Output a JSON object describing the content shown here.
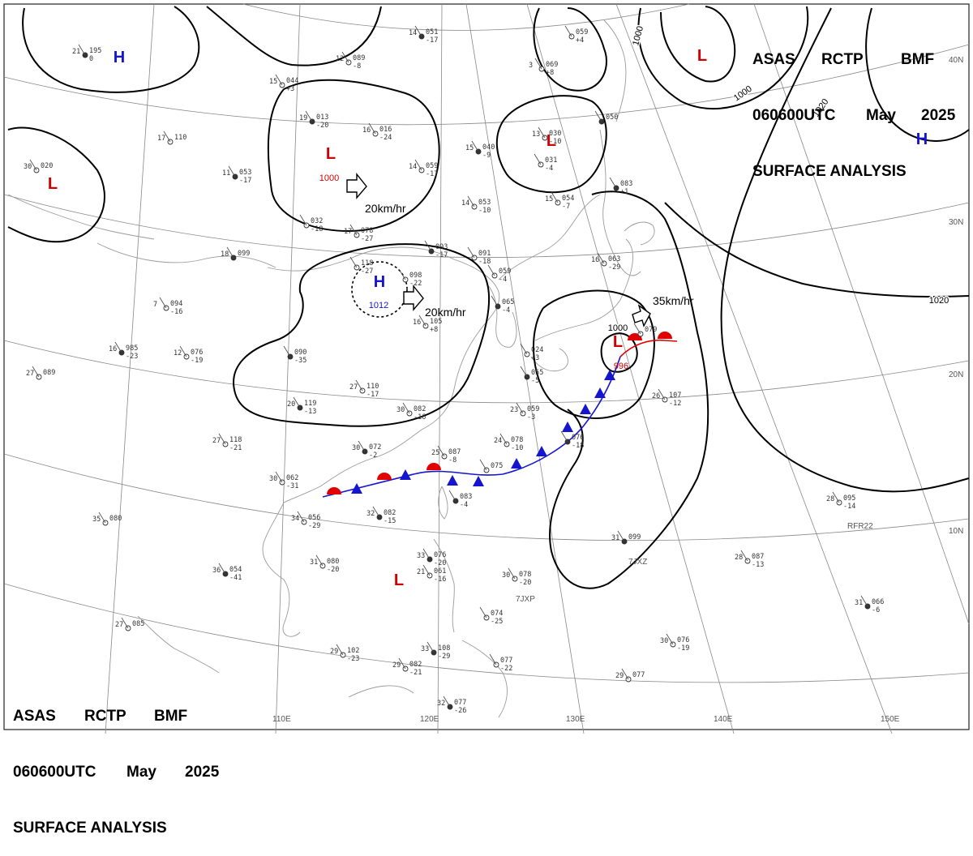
{
  "header": {
    "agency": "ASAS",
    "office": "RCTP",
    "issuer": "BMF",
    "time": "060600UTC",
    "month": "May",
    "year": "2025",
    "title": "SURFACE ANALYSIS"
  },
  "longitude_labels": [
    "110E",
    "120E",
    "130E",
    "140E",
    "150E"
  ],
  "latitude_labels": [
    "40N",
    "30N",
    "20N",
    "10N"
  ],
  "isobar_labels": [
    "1000",
    "1000",
    "1020",
    "1020",
    "1000"
  ],
  "pressure_centers": [
    {
      "type": "H",
      "value": "",
      "color": "#1515d0"
    },
    {
      "type": "L",
      "value": "",
      "color": "#d00000"
    },
    {
      "type": "L",
      "value": "1000",
      "color": "#d00000"
    },
    {
      "type": "L",
      "value": "",
      "color": "#d00000"
    },
    {
      "type": "L",
      "value": "",
      "color": "#d00000"
    },
    {
      "type": "H",
      "value": "",
      "color": "#1515d0"
    },
    {
      "type": "H",
      "value": "1012",
      "color": "#1515d0"
    },
    {
      "type": "L",
      "value": "996",
      "color": "#d00000"
    },
    {
      "type": "L",
      "value": "",
      "color": "#d00000"
    }
  ],
  "movement_labels": [
    "20km/hr",
    "20km/hr",
    "35km/hr"
  ],
  "stations": [
    {
      "t": "14",
      "p": "051",
      "d": "-17"
    },
    {
      "t": "12",
      "p": "089",
      "d": "-8"
    },
    {
      "t": "15",
      "p": "044",
      "d": "+3"
    },
    {
      "t": "19",
      "p": "013",
      "d": "-20"
    },
    {
      "t": "16",
      "p": "016",
      "d": "-24"
    },
    {
      "t": "14",
      "p": "059",
      "d": "-17"
    },
    {
      "t": "11",
      "p": "053",
      "d": "-17"
    },
    {
      "t": "",
      "p": "032",
      "d": "-18"
    },
    {
      "t": "17",
      "p": "078",
      "d": "-27"
    },
    {
      "t": "18",
      "p": "099",
      "d": ""
    },
    {
      "t": "",
      "p": "118",
      "d": "-27"
    },
    {
      "t": "",
      "p": "098",
      "d": "-22"
    },
    {
      "t": "",
      "p": "093",
      "d": "-17"
    },
    {
      "t": "",
      "p": "091",
      "d": "-18"
    },
    {
      "t": "7",
      "p": "094",
      "d": "-16"
    },
    {
      "t": "16",
      "p": "985",
      "d": "-23"
    },
    {
      "t": "12",
      "p": "076",
      "d": "-19"
    },
    {
      "t": "27",
      "p": "089",
      "d": ""
    },
    {
      "t": "",
      "p": "090",
      "d": "-35"
    },
    {
      "t": "16",
      "p": "105",
      "d": "+8"
    },
    {
      "t": "27",
      "p": "110",
      "d": "-17"
    },
    {
      "t": "20",
      "p": "119",
      "d": "-13"
    },
    {
      "t": "30",
      "p": "082",
      "d": "-16"
    },
    {
      "t": "27",
      "p": "118",
      "d": "-21"
    },
    {
      "t": "30",
      "p": "072",
      "d": "-2"
    },
    {
      "t": "25",
      "p": "087",
      "d": "-8"
    },
    {
      "t": "",
      "p": "075",
      "d": ""
    },
    {
      "t": "",
      "p": "083",
      "d": "-4"
    },
    {
      "t": "30",
      "p": "062",
      "d": "-31"
    },
    {
      "t": "34",
      "p": "056",
      "d": "-29"
    },
    {
      "t": "32",
      "p": "082",
      "d": "-15"
    },
    {
      "t": "35",
      "p": "080",
      "d": ""
    },
    {
      "t": "31",
      "p": "080",
      "d": "-20"
    },
    {
      "t": "36",
      "p": "054",
      "d": "-41"
    },
    {
      "t": "27",
      "p": "085",
      "d": ""
    },
    {
      "t": "29",
      "p": "102",
      "d": "-23"
    },
    {
      "t": "33",
      "p": "076",
      "d": "-20"
    },
    {
      "t": "21",
      "p": "061",
      "d": "-16"
    },
    {
      "t": "",
      "p": "074",
      "d": "-25"
    },
    {
      "t": "33",
      "p": "108",
      "d": "-29"
    },
    {
      "t": "29",
      "p": "082",
      "d": "-21"
    },
    {
      "t": "",
      "p": "077",
      "d": "-22"
    },
    {
      "t": "32",
      "p": "077",
      "d": "-26"
    },
    {
      "t": "3",
      "p": "069",
      "d": "+8"
    },
    {
      "t": "",
      "p": "059",
      "d": "+4"
    },
    {
      "t": "15",
      "p": "040",
      "d": "-9"
    },
    {
      "t": "13",
      "p": "030",
      "d": "-10"
    },
    {
      "t": "",
      "p": "031",
      "d": "-4"
    },
    {
      "t": "",
      "p": "050",
      "d": ""
    },
    {
      "t": "15",
      "p": "054",
      "d": "-7"
    },
    {
      "t": "14",
      "p": "053",
      "d": "-10"
    },
    {
      "t": "",
      "p": "083",
      "d": "+1"
    },
    {
      "t": "16",
      "p": "063",
      "d": "-29"
    },
    {
      "t": "",
      "p": "059",
      "d": "-4"
    },
    {
      "t": "",
      "p": "065",
      "d": "-4"
    },
    {
      "t": "",
      "p": "079",
      "d": ""
    },
    {
      "t": "",
      "p": "024",
      "d": "+3"
    },
    {
      "t": "",
      "p": "055",
      "d": "-5"
    },
    {
      "t": "23",
      "p": "059",
      "d": "-3"
    },
    {
      "t": "24",
      "p": "078",
      "d": "-10"
    },
    {
      "t": "",
      "p": "076",
      "d": "-18"
    },
    {
      "t": "26",
      "p": "107",
      "d": "-12"
    },
    {
      "t": "28",
      "p": "095",
      "d": "-14"
    },
    {
      "t": "31",
      "p": "099",
      "d": ""
    },
    {
      "t": "28",
      "p": "087",
      "d": "-13"
    },
    {
      "t": "30",
      "p": "078",
      "d": "-20"
    },
    {
      "t": "31",
      "p": "066",
      "d": "-6"
    },
    {
      "t": "30",
      "p": "076",
      "d": "-19"
    },
    {
      "t": "29",
      "p": "077",
      "d": ""
    },
    {
      "t": "21",
      "p": "195",
      "d": "0"
    },
    {
      "t": "17",
      "p": "110",
      "d": ""
    },
    {
      "t": "30",
      "p": "020",
      "d": ""
    }
  ],
  "ship_ids": [
    "RFR22",
    "7JXZ",
    "7JXP"
  ],
  "colors": {
    "high": "#1515d0",
    "low": "#d00000",
    "isobar": "#000000",
    "grid": "#888888",
    "coast": "#9a9a9a",
    "warm_front": "#e00000",
    "cold_front": "#1515d0"
  }
}
